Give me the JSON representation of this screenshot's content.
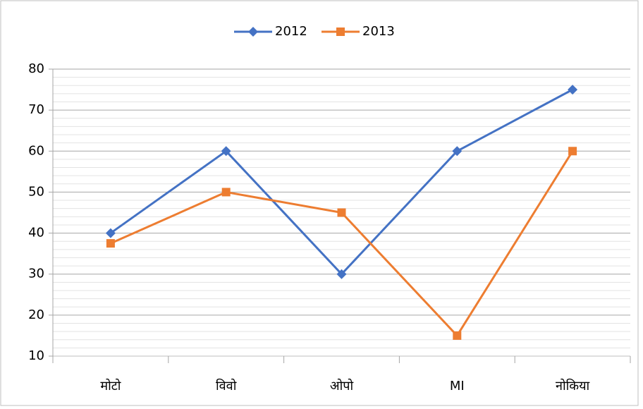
{
  "chart_data": {
    "type": "line",
    "categories": [
      "मोटो",
      "विवो",
      "ओपो",
      "MI",
      "नोकिया"
    ],
    "series": [
      {
        "name": "2012",
        "color": "#4472c4",
        "marker": "diamond",
        "values": [
          40,
          60,
          30,
          60,
          75
        ]
      },
      {
        "name": "2013",
        "color": "#ed7d31",
        "marker": "square",
        "values": [
          37.5,
          50,
          45,
          15,
          60
        ]
      }
    ],
    "ylim": [
      10,
      80
    ],
    "yticks": [
      10,
      20,
      30,
      40,
      50,
      60,
      70,
      80
    ],
    "minor_yticks": [
      12,
      14,
      16,
      18,
      22,
      24,
      26,
      28,
      32,
      34,
      36,
      38,
      42,
      44,
      46,
      48,
      52,
      54,
      56,
      58,
      62,
      64,
      66,
      68,
      72,
      74,
      76,
      78
    ],
    "grid": true,
    "legend": "top"
  }
}
